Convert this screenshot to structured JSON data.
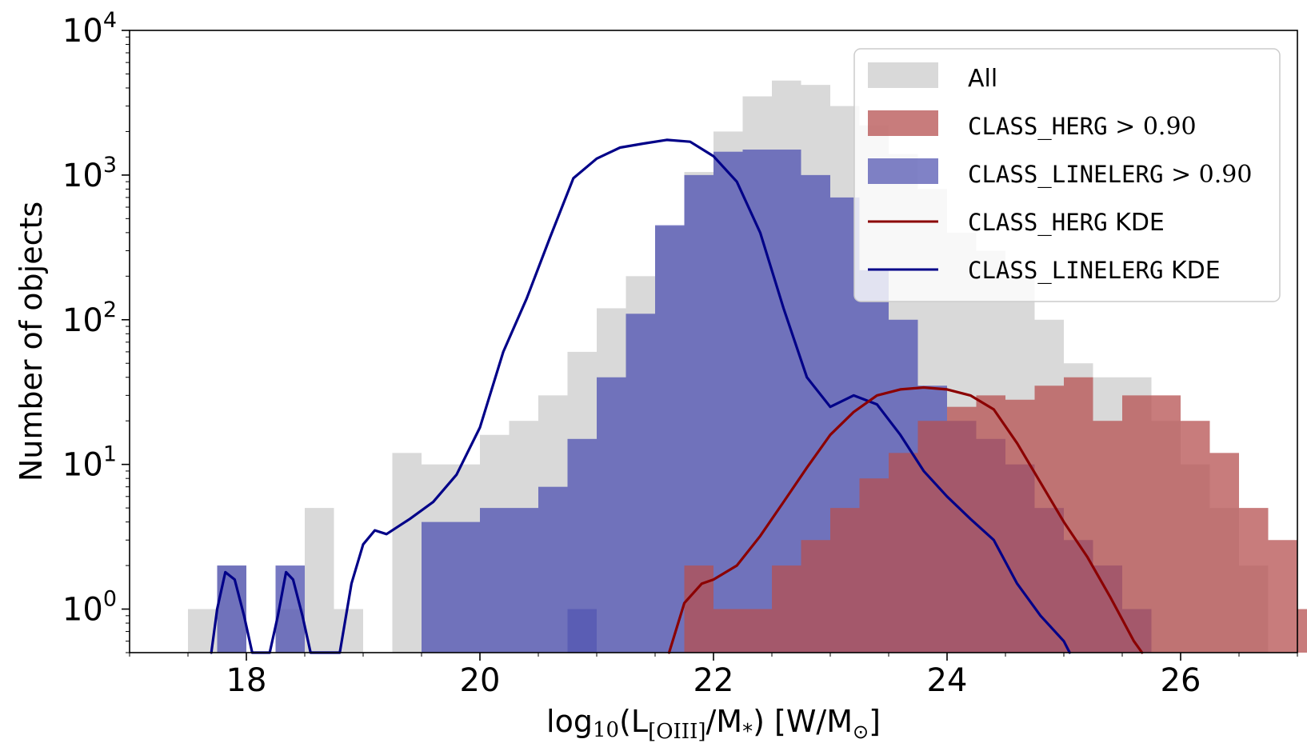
{
  "chart_data": {
    "type": "bar",
    "title": "",
    "xlabel": {
      "prefix": "log",
      "base": "10",
      "open": "(L",
      "sub": "[OIII]",
      "mid": "/M",
      "mid_sub": "*",
      "close": ") [W/M",
      "sun": "⊙",
      "end": "]"
    },
    "ylabel": "Number of objects",
    "xlim": [
      17.0,
      27.0
    ],
    "ylim": [
      0.5,
      10000
    ],
    "yscale": "log",
    "grid": false,
    "legend_position": "top-right",
    "x_ticks": [
      18,
      20,
      22,
      24,
      26
    ],
    "y_ticks": [
      {
        "value": 1,
        "base": "10",
        "exp": "0"
      },
      {
        "value": 10,
        "base": "10",
        "exp": "1"
      },
      {
        "value": 100,
        "base": "10",
        "exp": "2"
      },
      {
        "value": 1000,
        "base": "10",
        "exp": "3"
      },
      {
        "value": 10000,
        "base": "10",
        "exp": "4"
      }
    ],
    "bin_edges_start": 17.5,
    "bin_width": 0.25,
    "series": [
      {
        "name": "All",
        "kind": "hist",
        "color": "#d9d9d9",
        "values": [
          1,
          2,
          0,
          1,
          5,
          1,
          0,
          12,
          10,
          10,
          16,
          20,
          30,
          60,
          120,
          200,
          440,
          1050,
          2000,
          3500,
          4500,
          4200,
          3000,
          2200,
          1400,
          800,
          400,
          300,
          200,
          100,
          50,
          40,
          40,
          20,
          10,
          5,
          2,
          0,
          0,
          0,
          0,
          1,
          3,
          0,
          1
        ]
      },
      {
        "name_parts": [
          "CLASS_HERG",
          " > 0.90"
        ],
        "kind": "hist",
        "color": "#b55050",
        "values": [
          0,
          0,
          0,
          0,
          0,
          0,
          0,
          0,
          0,
          0,
          0,
          0,
          0,
          0,
          0,
          0,
          0,
          0,
          0,
          0,
          0,
          0,
          0,
          0,
          0,
          0,
          0,
          0,
          0,
          0,
          0,
          0,
          0,
          0,
          0,
          0,
          0,
          0,
          0,
          0,
          0,
          0,
          0,
          0,
          0,
          0,
          0,
          0,
          0,
          0,
          0,
          0,
          0,
          0,
          0
        ]
      },
      {
        "name_parts": [
          "CLASS_LINELERG",
          " > 0.90"
        ],
        "kind": "hist",
        "color": "#5558b3",
        "values": [
          0,
          2,
          0,
          2,
          0,
          0,
          0,
          0,
          4,
          4,
          5,
          5,
          7,
          15,
          40,
          110,
          450,
          1000,
          1450,
          1500,
          1500,
          1000,
          700,
          220,
          100,
          35,
          20,
          15,
          10,
          5,
          3,
          2,
          1,
          0,
          0,
          0,
          0
        ]
      },
      {
        "name_parts": [
          "CLASS_HERG",
          " KDE"
        ],
        "kind": "line",
        "color": "#8b0000"
      },
      {
        "name_parts": [
          "CLASS_LINELERG",
          " KDE"
        ],
        "kind": "line",
        "color": "#000088"
      }
    ],
    "herg_hist": {
      "start": 21.75,
      "values": [
        2,
        1,
        1,
        2,
        3,
        5,
        8,
        12,
        20,
        25,
        30,
        28,
        35,
        40,
        20,
        30,
        30,
        20,
        12,
        5,
        3,
        1
      ]
    },
    "linelerg_hist_overlap": {
      "start": 20.75,
      "values": [
        1,
        0,
        0,
        0,
        0,
        0,
        0,
        0,
        0,
        0,
        0,
        0,
        0,
        0,
        0,
        0,
        0,
        0,
        0,
        0,
        0,
        0
      ]
    },
    "herg_kde": {
      "x": [
        21.62,
        21.75,
        21.9,
        22.0,
        22.2,
        22.4,
        22.6,
        22.8,
        23.0,
        23.2,
        23.4,
        23.6,
        23.8,
        24.0,
        24.2,
        24.4,
        24.6,
        24.8,
        25.0,
        25.2,
        25.4,
        25.6,
        25.67
      ],
      "y": [
        0.5,
        1.1,
        1.5,
        1.6,
        2.0,
        3.2,
        5.5,
        9.5,
        16,
        23,
        30,
        33,
        34,
        33,
        30,
        24,
        14,
        7.5,
        4.0,
        2.3,
        1.2,
        0.6,
        0.5
      ]
    },
    "linelerg_kde": {
      "x": [
        17.7,
        17.75,
        17.82,
        17.9,
        17.98,
        18.05,
        18.12,
        18.2,
        18.27,
        18.34,
        18.4,
        18.48,
        18.55,
        18.62,
        18.8,
        18.9,
        19.0,
        19.1,
        19.2,
        19.4,
        19.6,
        19.8,
        20.0,
        20.2,
        20.4,
        20.6,
        20.8,
        21.0,
        21.2,
        21.4,
        21.6,
        21.8,
        22.0,
        22.2,
        22.4,
        22.6,
        22.8,
        23.0,
        23.2,
        23.4,
        23.6,
        23.8,
        24.0,
        24.2,
        24.4,
        24.6,
        24.8,
        25.0,
        25.05
      ],
      "y": [
        0.5,
        1.0,
        1.8,
        1.6,
        0.9,
        0.5,
        0.5,
        0.5,
        0.9,
        1.8,
        1.6,
        0.9,
        0.5,
        0.5,
        0.5,
        1.5,
        2.8,
        3.5,
        3.3,
        4.2,
        5.5,
        8.5,
        18,
        60,
        140,
        370,
        950,
        1300,
        1550,
        1650,
        1750,
        1700,
        1350,
        900,
        400,
        120,
        40,
        25,
        30,
        26,
        16,
        9,
        6,
        4.2,
        3.0,
        1.5,
        0.9,
        0.6,
        0.5
      ]
    }
  }
}
